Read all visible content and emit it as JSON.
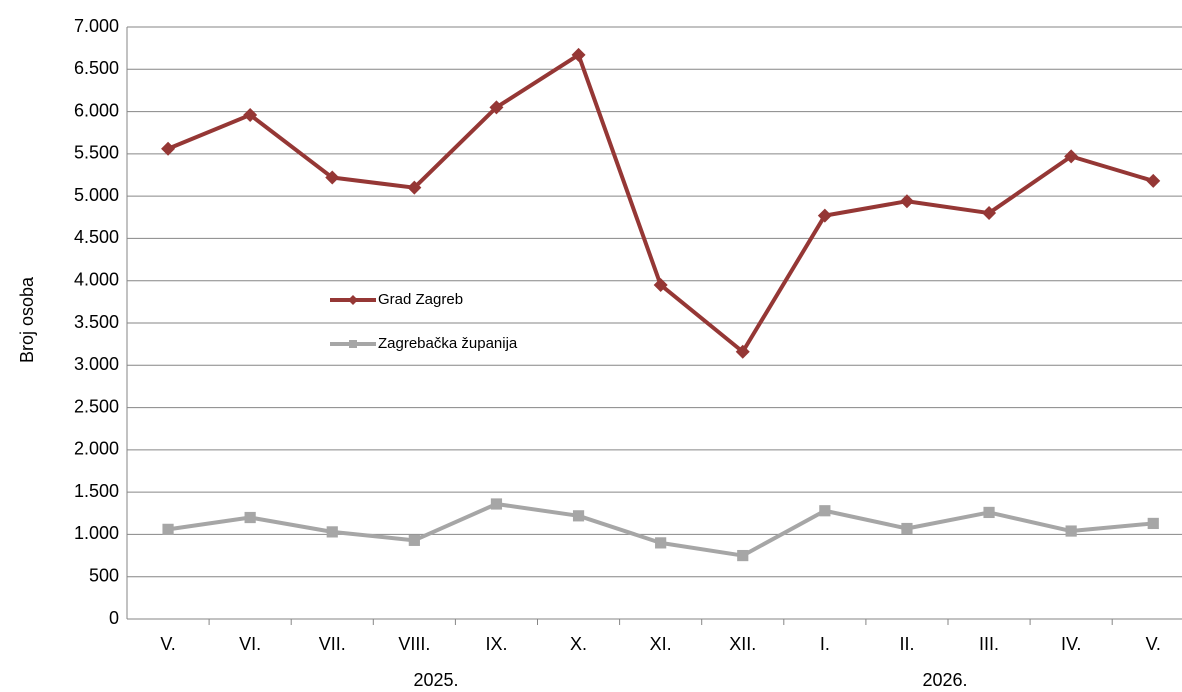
{
  "chart_data": {
    "type": "line",
    "y_label": "Broj osoba",
    "categories": [
      "V.",
      "VI.",
      "VII.",
      "VIII.",
      "IX.",
      "X.",
      "XI.",
      "XII.",
      "I.",
      "II.",
      "III.",
      "IV.",
      "V."
    ],
    "x_groups": [
      "2025.",
      "2026."
    ],
    "series": [
      {
        "name": "Grad Zagreb",
        "color": "#953735",
        "marker": "diamond",
        "values": [
          5560,
          5960,
          5220,
          5100,
          6050,
          6670,
          3950,
          3160,
          4770,
          4940,
          4800,
          5470,
          5180
        ]
      },
      {
        "name": "Zagrebačka županija",
        "color": "#a6a6a6",
        "marker": "square",
        "values": [
          1060,
          1200,
          1030,
          930,
          1360,
          1220,
          900,
          750,
          1280,
          1070,
          1260,
          1040,
          1130
        ]
      }
    ],
    "ylim": [
      0,
      7000
    ],
    "yticks": [
      0,
      500,
      {
        "value": 1000,
        "label": "1.000"
      },
      {
        "value": 1500,
        "label": "1.500"
      },
      {
        "value": 2000,
        "label": "2.000"
      },
      {
        "value": 2500,
        "label": "2.500"
      },
      {
        "value": 3000,
        "label": "3.000"
      },
      {
        "value": 3500,
        "label": "3.500"
      },
      {
        "value": 4000,
        "label": "4.000"
      },
      {
        "value": 4500,
        "label": "4.500"
      },
      {
        "value": 5000,
        "label": "5.000"
      },
      {
        "value": 5500,
        "label": "5.500"
      },
      {
        "value": 6000,
        "label": "6.000"
      },
      {
        "value": 6500,
        "label": "6.500"
      },
      {
        "value": 7000,
        "label": "7.000"
      }
    ],
    "grid": true,
    "legend": "inside-left"
  }
}
